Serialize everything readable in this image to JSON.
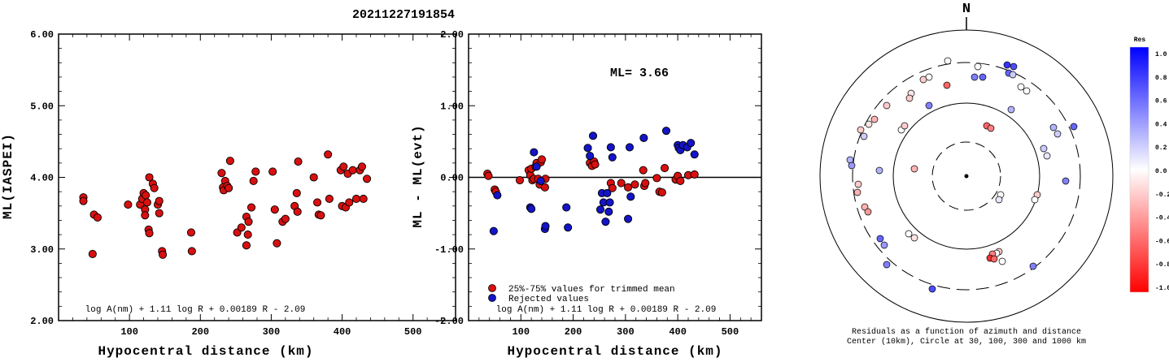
{
  "title": "20211227191854",
  "colors": {
    "red": "#d81010",
    "blue": "#1414c8",
    "frame": "#000000"
  },
  "chart_data": [
    {
      "type": "scatter",
      "xlabel": "Hypocentral distance (km)",
      "ylabel": "ML(IASPEI)",
      "xlim": [
        0,
        560
      ],
      "ylim": [
        2.0,
        6.0
      ],
      "x_ticks": [
        "100",
        "200",
        "300",
        "400",
        "500"
      ],
      "y_ticks": [
        "2.00",
        "3.00",
        "4.00",
        "5.00",
        "6.00"
      ],
      "formula": "log A(nm) + 1.11 log R + 0.00189 R - 2.09",
      "series": [
        {
          "color": "#d81010",
          "points": [
            [
              35,
              3.72
            ],
            [
              35,
              3.67
            ],
            [
              48,
              2.93
            ],
            [
              50,
              3.48
            ],
            [
              55,
              3.44
            ],
            [
              98,
              3.62
            ],
            [
              115,
              3.62
            ],
            [
              118,
              3.7
            ],
            [
              120,
              3.78
            ],
            [
              122,
              3.55
            ],
            [
              122,
              3.47
            ],
            [
              123,
              3.75
            ],
            [
              125,
              3.65
            ],
            [
              127,
              3.27
            ],
            [
              128,
              3.22
            ],
            [
              128,
              4.0
            ],
            [
              133,
              3.91
            ],
            [
              135,
              3.85
            ],
            [
              140,
              3.62
            ],
            [
              142,
              3.67
            ],
            [
              142,
              3.5
            ],
            [
              146,
              2.97
            ],
            [
              147,
              2.92
            ],
            [
              187,
              3.23
            ],
            [
              188,
              2.97
            ],
            [
              230,
              4.06
            ],
            [
              232,
              3.86
            ],
            [
              233,
              3.82
            ],
            [
              235,
              3.95
            ],
            [
              238,
              3.88
            ],
            [
              240,
              3.85
            ],
            [
              242,
              4.23
            ],
            [
              252,
              3.23
            ],
            [
              258,
              3.3
            ],
            [
              265,
              3.05
            ],
            [
              265,
              3.45
            ],
            [
              267,
              3.2
            ],
            [
              268,
              3.38
            ],
            [
              272,
              3.58
            ],
            [
              275,
              3.95
            ],
            [
              278,
              4.08
            ],
            [
              302,
              4.08
            ],
            [
              305,
              3.55
            ],
            [
              308,
              3.08
            ],
            [
              316,
              3.38
            ],
            [
              320,
              3.42
            ],
            [
              333,
              3.6
            ],
            [
              336,
              3.78
            ],
            [
              337,
              3.52
            ],
            [
              338,
              4.22
            ],
            [
              360,
              4.0
            ],
            [
              365,
              3.65
            ],
            [
              367,
              3.48
            ],
            [
              370,
              3.47
            ],
            [
              380,
              4.32
            ],
            [
              382,
              3.7
            ],
            [
              398,
              4.1
            ],
            [
              400,
              3.6
            ],
            [
              402,
              4.15
            ],
            [
              405,
              3.58
            ],
            [
              408,
              4.05
            ],
            [
              410,
              3.65
            ],
            [
              415,
              4.1
            ],
            [
              420,
              3.7
            ],
            [
              425,
              4.1
            ],
            [
              428,
              4.15
            ],
            [
              430,
              3.7
            ],
            [
              435,
              3.98
            ]
          ]
        }
      ]
    },
    {
      "type": "scatter",
      "xlabel": "Hypocentral distance (km)",
      "ylabel": "ML - ML(evt)",
      "xlim": [
        0,
        560
      ],
      "ylim": [
        -2.0,
        2.0
      ],
      "x_ticks": [
        "100",
        "200",
        "300",
        "400",
        "500"
      ],
      "y_ticks": [
        "-2.00",
        "-1.00",
        "0.00",
        "1.00",
        "2.00"
      ],
      "annotation": "ML= 3.66",
      "formula": "log A(nm) + 1.11 log R + 0.00189 R - 2.09",
      "legend": [
        {
          "label": "25%-75% values for trimmed mean",
          "color": "#d81010"
        },
        {
          "label": "Rejected values",
          "color": "#1414c8"
        }
      ],
      "series": [
        {
          "name": "25%-75% values for trimmed mean",
          "color": "#d81010",
          "points": [
            [
              36,
              0.05
            ],
            [
              38,
              0.02
            ],
            [
              50,
              -0.17
            ],
            [
              52,
              -0.2
            ],
            [
              98,
              -0.04
            ],
            [
              115,
              0.1
            ],
            [
              118,
              0.03
            ],
            [
              120,
              0.12
            ],
            [
              122,
              -0.04
            ],
            [
              125,
              -0.02
            ],
            [
              128,
              0.15
            ],
            [
              130,
              0.2
            ],
            [
              133,
              -0.02
            ],
            [
              136,
              -0.1
            ],
            [
              138,
              0.21
            ],
            [
              140,
              0.25
            ],
            [
              146,
              -0.14
            ],
            [
              147,
              -0.02
            ],
            [
              232,
              0.2
            ],
            [
              236,
              0.16
            ],
            [
              240,
              0.22
            ],
            [
              242,
              0.18
            ],
            [
              272,
              -0.08
            ],
            [
              275,
              -0.15
            ],
            [
              292,
              -0.08
            ],
            [
              305,
              -0.14
            ],
            [
              318,
              -0.1
            ],
            [
              334,
              0.1
            ],
            [
              336,
              -0.12
            ],
            [
              338,
              -0.08
            ],
            [
              360,
              -0.01
            ],
            [
              365,
              -0.2
            ],
            [
              370,
              -0.21
            ],
            [
              375,
              0.13
            ],
            [
              396,
              -0.03
            ],
            [
              400,
              0.02
            ],
            [
              405,
              -0.05
            ],
            [
              420,
              0.03
            ],
            [
              432,
              0.04
            ]
          ]
        },
        {
          "name": "Rejected values",
          "color": "#1414c8",
          "points": [
            [
              48,
              -0.75
            ],
            [
              55,
              -0.25
            ],
            [
              118,
              -0.42
            ],
            [
              120,
              -0.44
            ],
            [
              125,
              0.35
            ],
            [
              130,
              0.15
            ],
            [
              138,
              -0.05
            ],
            [
              146,
              -0.72
            ],
            [
              147,
              -0.68
            ],
            [
              187,
              -0.42
            ],
            [
              190,
              -0.7
            ],
            [
              228,
              0.41
            ],
            [
              232,
              0.3
            ],
            [
              238,
              0.58
            ],
            [
              252,
              -0.45
            ],
            [
              255,
              -0.22
            ],
            [
              258,
              -0.35
            ],
            [
              262,
              -0.62
            ],
            [
              265,
              -0.22
            ],
            [
              268,
              -0.48
            ],
            [
              270,
              -0.35
            ],
            [
              272,
              0.42
            ],
            [
              275,
              0.28
            ],
            [
              305,
              -0.58
            ],
            [
              308,
              0.42
            ],
            [
              310,
              -0.27
            ],
            [
              335,
              0.55
            ],
            [
              378,
              0.65
            ],
            [
              400,
              0.45
            ],
            [
              402,
              0.41
            ],
            [
              405,
              0.38
            ],
            [
              410,
              0.45
            ],
            [
              418,
              0.42
            ],
            [
              425,
              0.48
            ],
            [
              432,
              0.32
            ]
          ]
        }
      ]
    },
    {
      "type": "scatter",
      "subtype": "polar-residuals",
      "north_label": "N",
      "caption_line1": "Residuals as a function of azimuth and distance",
      "caption_line2": "Center (10km), Circle at 30, 100, 300 and 1000 km",
      "colorbar": {
        "title": "Res",
        "ticks": [
          "1.0",
          "0.8",
          "0.6",
          "0.4",
          "0.2",
          "0.0",
          "-0.2",
          "-0.4",
          "-0.6",
          "-0.8",
          "-1.0"
        ],
        "max_color": "#0000ff",
        "mid_color": "#ffffff",
        "min_color": "#ff0000"
      },
      "points": [
        [
          1165,
          75,
          0.0
        ],
        [
          1202,
          82,
          0.0
        ],
        [
          1238,
          80,
          0.8
        ],
        [
          1246,
          82,
          0.7
        ],
        [
          1240,
          90,
          0.6
        ],
        [
          1198,
          95,
          0.5
        ],
        [
          1208,
          95,
          0.6
        ],
        [
          1245,
          92,
          0.2
        ],
        [
          1142,
          95,
          0.0
        ],
        [
          1135,
          98,
          -0.2
        ],
        [
          1255,
          107,
          0.0
        ],
        [
          1262,
          112,
          0.0
        ],
        [
          1164,
          105,
          -0.6
        ],
        [
          1120,
          115,
          -0.1
        ],
        [
          1118,
          121,
          -0.2
        ],
        [
          1090,
          130,
          -0.2
        ],
        [
          1142,
          130,
          0.5
        ],
        [
          1243,
          135,
          0.3
        ],
        [
          1075,
          147,
          -0.3
        ],
        [
          1068,
          153,
          -0.1
        ],
        [
          1213,
          155,
          -0.6
        ],
        [
          1218,
          158,
          -0.5
        ],
        [
          1108,
          160,
          0.0
        ],
        [
          1112,
          155,
          -0.2
        ],
        [
          1295,
          157,
          0.3
        ],
        [
          1320,
          156,
          0.6
        ],
        [
          1300,
          165,
          0.2
        ],
        [
          1058,
          160,
          -0.2
        ],
        [
          1062,
          168,
          0.2
        ],
        [
          1283,
          183,
          0.2
        ],
        [
          1287,
          192,
          0.1
        ],
        [
          1045,
          197,
          0.3
        ],
        [
          1047,
          204,
          0.4
        ],
        [
          1081,
          210,
          0.3
        ],
        [
          1124,
          208,
          -0.3
        ],
        [
          1310,
          223,
          0.5
        ],
        [
          1055,
          227,
          -0.2
        ],
        [
          1054,
          237,
          -0.3
        ],
        [
          1275,
          240,
          -0.2
        ],
        [
          1272,
          246,
          0.0
        ],
        [
          1230,
          240,
          0.0
        ],
        [
          1228,
          246,
          0.1
        ],
        [
          1063,
          255,
          -0.3
        ],
        [
          1067,
          261,
          -0.4
        ],
        [
          1117,
          288,
          0.0
        ],
        [
          1124,
          293,
          -0.1
        ],
        [
          1082,
          294,
          0.6
        ],
        [
          1087,
          302,
          0.4
        ],
        [
          1228,
          310,
          -0.2
        ],
        [
          1225,
          312,
          0.0
        ],
        [
          1220,
          313,
          -0.5
        ],
        [
          1217,
          318,
          -0.8
        ],
        [
          1222,
          319,
          -0.6
        ],
        [
          1232,
          322,
          0.0
        ],
        [
          1090,
          326,
          0.5
        ],
        [
          1270,
          328,
          0.5
        ],
        [
          1146,
          356,
          0.7
        ]
      ]
    }
  ]
}
